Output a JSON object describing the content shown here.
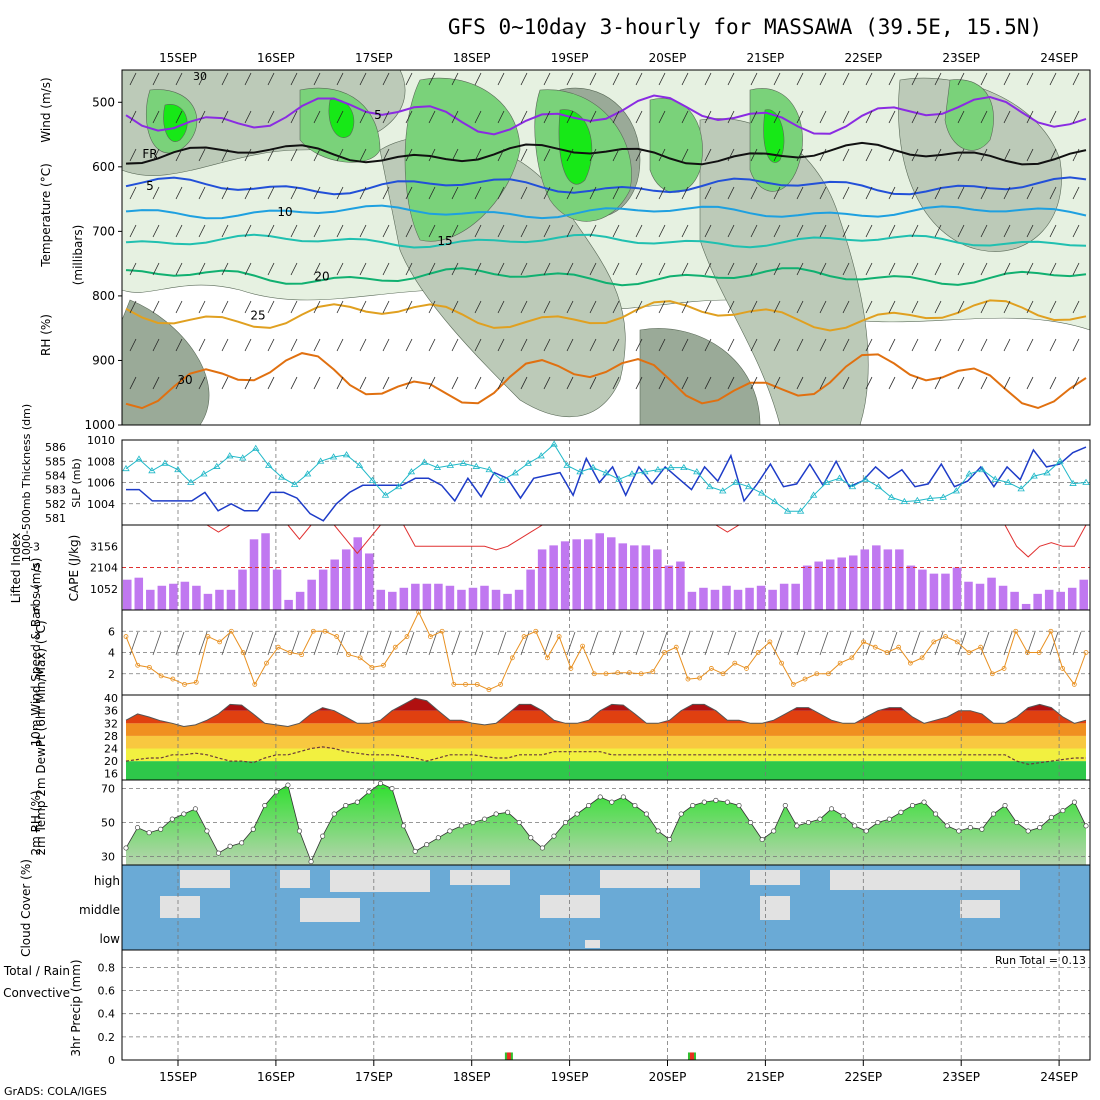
{
  "title": "GFS 0~10day 3-hourly for MASSAWA (39.5E, 15.5N)",
  "credit": "GrADS: COLA/IGES",
  "colors": {
    "rh_light": "#e6f1e1",
    "rh_mid": "#bccab8",
    "rh_dark": "#9aaa98",
    "green_mid": "#7ad27a",
    "green_bright": "#17e817",
    "temp_cold": "#8a2be2",
    "temp_5": "#2250d8",
    "temp_10": "#1ea0e0",
    "temp_15": "#20c0b0",
    "temp_20": "#10b070",
    "temp_25": "#e0a020",
    "temp_30": "#e07010",
    "thickness": "#1e3cc8",
    "slp": "#20b8c8",
    "cape": "#c078f0",
    "lifted": "#e03030",
    "wind_speed": "#e89020",
    "cloud": "#6aaad6",
    "cloud_gap": "#e2e2e2",
    "rh2m": "#2ee02e",
    "precip_total": "#30c030",
    "precip_conv": "#e83020"
  },
  "chart_data": [
    {
      "type": "heatmap",
      "name": "upper-air",
      "x_dates": [
        "15SEP",
        "16SEP",
        "17SEP",
        "18SEP",
        "19SEP",
        "20SEP",
        "21SEP",
        "22SEP",
        "23SEP",
        "24SEP"
      ],
      "ylabel_parts": [
        "RH (%)",
        "Temperature (°C)",
        "Wind (m/s)"
      ],
      "yaxis_label": "(millibars)",
      "y_ticks": [
        500,
        600,
        700,
        800,
        900,
        1000
      ],
      "ylim": [
        450,
        1000
      ],
      "isotherm_labels": [
        "5",
        "FR",
        "5",
        "10",
        "15",
        "20",
        "25",
        "30"
      ],
      "rh_contour_label": "30"
    },
    {
      "type": "line",
      "name": "thickness-slp",
      "ylabel_left": "1000-500mb Thickness (dm)",
      "ylabel_right": "SLP (mb)",
      "left_ticks": [
        581,
        582,
        583,
        584,
        585,
        586
      ],
      "right_ticks": [
        1004,
        1006,
        1008,
        1010
      ],
      "ylim_left": [
        580.5,
        586.5
      ],
      "ylim_right": [
        1002,
        1010
      ],
      "thickness": [
        583,
        583,
        582.2,
        582.2,
        582.2,
        582.2,
        582.8,
        581.5,
        582,
        581.5,
        581.5,
        582.8,
        582.8,
        582.4,
        581.3,
        580.8,
        582,
        582.8,
        583.3,
        583.3,
        583.3,
        583.3,
        583.8,
        583.8,
        583.3,
        582.2,
        583.8,
        582.5,
        584.2,
        583.8,
        582.4,
        583.8,
        584,
        584.2,
        582.6,
        585.2,
        583.5,
        584.6,
        582.6,
        584.6,
        583.4,
        584.6,
        583.8,
        583,
        584.6,
        583.6,
        585.4,
        582.2,
        583.4,
        584.8,
        583.2,
        583.4,
        584.8,
        583.3,
        585,
        583.2,
        583.6,
        584.6,
        583.8,
        584.4,
        583.2,
        583.4,
        584.8,
        583.2,
        583.6,
        584.6,
        583.2,
        584.6,
        583.7,
        585.8,
        584.6,
        584.8,
        585.6,
        586
      ],
      "slp": [
        1007.3,
        1008.2,
        1007.1,
        1007.8,
        1007.2,
        1006,
        1006.8,
        1007.5,
        1008.5,
        1008.3,
        1009.2,
        1007.6,
        1006.5,
        1005.8,
        1006.8,
        1008,
        1008.4,
        1008.6,
        1007.6,
        1006.2,
        1004.8,
        1005.6,
        1007,
        1007.9,
        1007.4,
        1007.6,
        1007.8,
        1007.5,
        1007.2,
        1006.2,
        1006.9,
        1007.8,
        1008.5,
        1009.6,
        1007.6,
        1007,
        1007.4,
        1006.9,
        1006.3,
        1006.8,
        1007,
        1007.2,
        1007.4,
        1007.4,
        1007,
        1005.6,
        1005.2,
        1006,
        1005.6,
        1005,
        1004.2,
        1003.3,
        1003.3,
        1004.8,
        1006,
        1006.4,
        1005.6,
        1006.3,
        1005.6,
        1004.6,
        1004.2,
        1004.3,
        1004.5,
        1004.6,
        1005.2,
        1006.8,
        1007.2,
        1006.3,
        1006,
        1005.4,
        1006.6,
        1006.9,
        1008,
        1005.9,
        1006
      ]
    },
    {
      "type": "bar",
      "name": "cape-lifted",
      "ylabel_left": "Lifted Index",
      "ylabel_right": "CAPE (J/kg)",
      "left_ticks": [
        "-3",
        "0",
        "3",
        "6"
      ],
      "right_ticks": [
        1052,
        2104,
        3156
      ],
      "ylim_cape": [
        0,
        4209
      ],
      "cape": [
        1500,
        1600,
        1000,
        1200,
        1300,
        1400,
        1200,
        800,
        1000,
        1000,
        2000,
        3500,
        3800,
        2000,
        500,
        900,
        1500,
        2000,
        2500,
        3000,
        3600,
        2800,
        1000,
        900,
        1100,
        1300,
        1300,
        1300,
        1200,
        1000,
        1100,
        1200,
        1000,
        800,
        1000,
        2000,
        3000,
        3200,
        3400,
        3500,
        3500,
        3800,
        3600,
        3300,
        3200,
        3200,
        3000,
        2200,
        2400,
        900,
        1100,
        1000,
        1200,
        1000,
        1100,
        1200,
        1000,
        1300,
        1300,
        2200,
        2400,
        2500,
        2600,
        2700,
        3000,
        3200,
        3000,
        3000,
        2200,
        2000,
        1800,
        1800,
        2100,
        1400,
        1300,
        1600,
        1200,
        900,
        300,
        800,
        1000,
        900,
        1100,
        1500
      ],
      "lifted_index": [
        -6,
        -6,
        -6,
        -6,
        -6,
        -6,
        -6,
        -6,
        -5,
        -6,
        -6,
        -6,
        -6,
        -6,
        -6,
        -4,
        -6,
        -6,
        -6,
        -4,
        -2,
        -4,
        -6,
        -6,
        -6,
        -3,
        -3,
        -3,
        -3,
        -3,
        -3,
        -3,
        -2.5,
        -3,
        -4,
        -5,
        -6,
        -6,
        -6,
        -6,
        -6,
        -6,
        -6,
        -6,
        -6,
        -6,
        -6,
        -6,
        -6,
        -6,
        -6,
        -6,
        -5,
        -6,
        -6,
        -6,
        -6,
        -6,
        -6,
        -6,
        -6,
        -6,
        -6,
        -6,
        -6,
        -6,
        -6,
        -6,
        -6,
        -6,
        -6,
        -6,
        -6,
        -6,
        -6,
        -6,
        -6,
        -3,
        -1.5,
        -3,
        -3.5,
        -3,
        -3,
        -6
      ]
    },
    {
      "type": "line",
      "name": "wind-10m",
      "ylabel": "10m Wind Speed & Barbs (m/s)",
      "y_ticks": [
        2,
        4,
        6
      ],
      "ylim": [
        0,
        8
      ],
      "speed": [
        5.5,
        2.8,
        2.6,
        1.8,
        1.5,
        1,
        1.2,
        5.5,
        5,
        6,
        4,
        1,
        3,
        4.5,
        4,
        3.8,
        6,
        6,
        5.5,
        3.8,
        3.5,
        2.6,
        2.8,
        4.5,
        5.5,
        7.8,
        5.5,
        6,
        1,
        1,
        1,
        0.5,
        1,
        3.5,
        5.5,
        6,
        3.5,
        5.5,
        2.5,
        4.6,
        2,
        2,
        2.1,
        2.1,
        2,
        2.2,
        4,
        4.5,
        1.5,
        1.6,
        2.5,
        2,
        3,
        2.5,
        4,
        5,
        3,
        1,
        1.5,
        2,
        2,
        3,
        3.5,
        5,
        4.5,
        4,
        4.5,
        3,
        3.5,
        5,
        5.5,
        5,
        4,
        4.5,
        2,
        2.5,
        6,
        4,
        4,
        6,
        2.5,
        1,
        4
      ]
    },
    {
      "type": "area",
      "name": "temp-2m",
      "ylabel": "2m Temp 2m DewPt (6hr Min/Max) (°C)",
      "y_ticks": [
        16,
        20,
        24,
        28,
        32,
        36,
        40
      ],
      "ylim": [
        14,
        41
      ],
      "temp": [
        33,
        35,
        34,
        32.8,
        32,
        31,
        31.5,
        33,
        35,
        38,
        37.8,
        35,
        32,
        31.5,
        31,
        32,
        35,
        37,
        36,
        34,
        32,
        32,
        33,
        36,
        38,
        40,
        39.2,
        36,
        33,
        33,
        32,
        31.5,
        32,
        35,
        38,
        38,
        36,
        33,
        32,
        32,
        33,
        36,
        38,
        37.8,
        35,
        32,
        32,
        33,
        36,
        38,
        38,
        36,
        33,
        33,
        32,
        32,
        33,
        35,
        37,
        37,
        35,
        33,
        32,
        32,
        34,
        36,
        37,
        37,
        34,
        32,
        33,
        34,
        36,
        36,
        35,
        32,
        32,
        34,
        37,
        38,
        37,
        34,
        32,
        33
      ],
      "dewpoint": [
        20,
        20.5,
        21,
        21,
        22,
        22,
        22.5,
        22,
        21,
        20,
        20,
        19.5,
        21,
        22,
        22,
        23,
        24,
        24.5,
        24,
        23,
        22.5,
        22,
        22,
        22,
        21.5,
        21,
        20,
        21,
        22,
        22,
        22,
        21.5,
        21,
        21,
        22,
        22,
        22,
        23,
        23,
        23,
        23,
        23,
        22,
        22,
        22,
        22,
        22,
        22,
        22,
        22,
        22,
        22,
        22,
        22,
        22,
        22,
        22,
        22,
        22,
        22,
        22,
        22,
        22,
        22,
        22,
        22,
        22,
        22,
        22,
        22,
        22,
        22,
        22,
        22,
        22,
        22,
        22,
        20,
        19,
        19.5,
        20,
        20.5,
        21,
        21
      ]
    },
    {
      "type": "area",
      "name": "rh-2m",
      "ylabel": "2m RH (%)",
      "y_ticks": [
        30,
        50,
        70
      ],
      "ylim": [
        25,
        75
      ],
      "rh": [
        35,
        47,
        44,
        46,
        52,
        55,
        58,
        45,
        32,
        36,
        38,
        46,
        60,
        68,
        72,
        45,
        27,
        42,
        55,
        60,
        62,
        68,
        73,
        70,
        48,
        33,
        37,
        41,
        45,
        48,
        50,
        52,
        55,
        56,
        50,
        41,
        35,
        42,
        50,
        55,
        60,
        65,
        62,
        65,
        60,
        55,
        45,
        40,
        55,
        60,
        62,
        63,
        62,
        60,
        50,
        40,
        45,
        60,
        48,
        50,
        52,
        58,
        54,
        48,
        45,
        50,
        52,
        56,
        60,
        62,
        55,
        48,
        45,
        47,
        46,
        55,
        60,
        50,
        45,
        47,
        53,
        57,
        62,
        48
      ]
    },
    {
      "type": "heatmap",
      "name": "cloud-cover",
      "ylabel": "Cloud Cover (%)",
      "levels": [
        "high",
        "middle",
        "low"
      ]
    },
    {
      "type": "bar",
      "name": "precip",
      "ylabel": "3hr Precip (mm)",
      "ylabel_left_parts": [
        "Total / Rain",
        "Convective"
      ],
      "y_ticks": [
        "0",
        "0.2",
        "0.4",
        "0.6",
        "0.8"
      ],
      "ylim": [
        0,
        0.95
      ],
      "run_total": "Run Total = 0.13",
      "events": [
        {
          "date_offset": 3.38,
          "value": 0.065
        },
        {
          "date_offset": 5.25,
          "value": 0.065
        }
      ]
    }
  ]
}
